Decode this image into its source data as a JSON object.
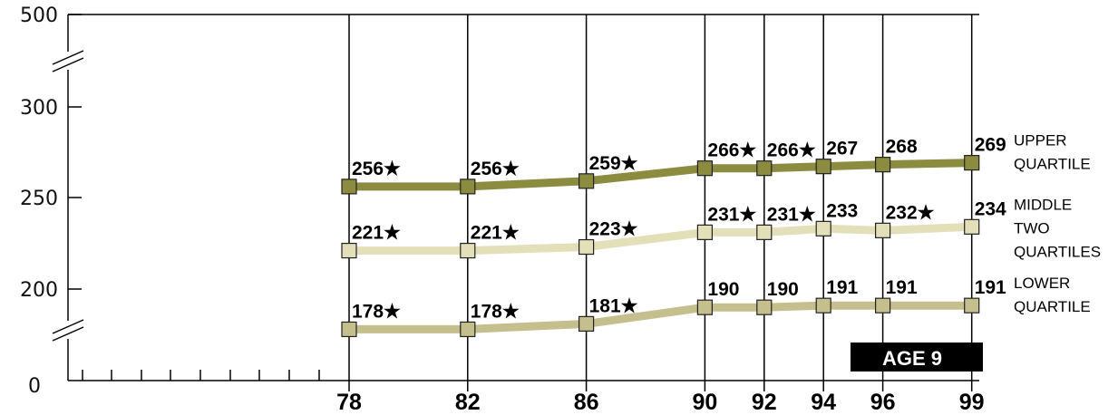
{
  "chart_data": {
    "type": "line",
    "x": [
      "78",
      "82",
      "86",
      "90",
      "92",
      "94",
      "96",
      "99"
    ],
    "y_ticks": [
      "0",
      "200",
      "250",
      "300",
      "500"
    ],
    "ylim": [
      0,
      500
    ],
    "axis_breaks": true,
    "grid": "vertical lines at each assessment year",
    "annotation": "AGE 9",
    "significance_marker": "★",
    "series": [
      {
        "name": "UPPER QUARTILE",
        "label_lines": [
          "UPPER",
          "QUARTILE"
        ],
        "color": "#8b8c3f",
        "values": [
          256,
          256,
          259,
          266,
          266,
          267,
          268,
          269
        ],
        "starred": [
          true,
          true,
          true,
          true,
          true,
          false,
          false,
          false
        ]
      },
      {
        "name": "MIDDLE TWO QUARTILES",
        "label_lines": [
          "MIDDLE",
          "TWO",
          "QUARTILES"
        ],
        "color": "#e3dfb8",
        "values": [
          221,
          221,
          223,
          231,
          231,
          233,
          232,
          234
        ],
        "starred": [
          true,
          true,
          true,
          true,
          true,
          false,
          true,
          false
        ]
      },
      {
        "name": "LOWER QUARTILE",
        "label_lines": [
          "LOWER",
          "QUARTILE"
        ],
        "color": "#c4bf8c",
        "values": [
          178,
          178,
          181,
          190,
          190,
          191,
          191,
          191
        ],
        "starred": [
          true,
          true,
          true,
          false,
          false,
          false,
          false,
          false
        ]
      }
    ]
  }
}
